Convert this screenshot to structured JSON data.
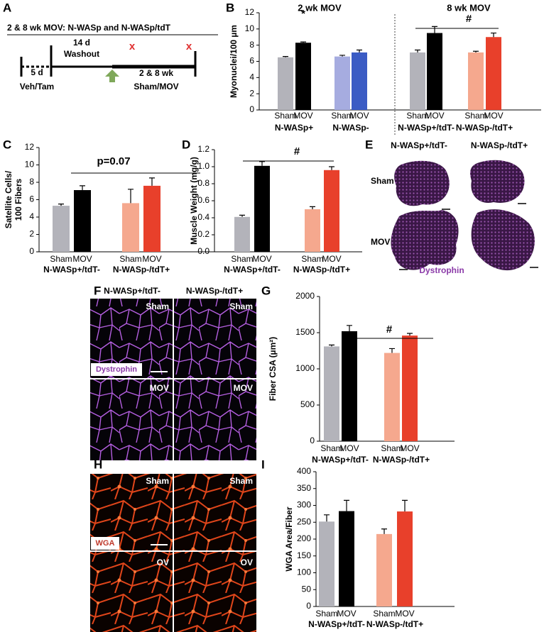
{
  "panel_letters": [
    "A",
    "B",
    "C",
    "D",
    "E",
    "F",
    "G",
    "H",
    "I"
  ],
  "timeline": {
    "title": "2 & 8 wk MOV: N-WASp and N-WASp/tdT",
    "labels": [
      "5 d",
      "Veh/Tam",
      "14 d",
      "Washout",
      "2 & 8 wk",
      "Sham/MOV"
    ],
    "markers": [
      "x",
      "x"
    ]
  },
  "chart_data": [
    {
      "type": "bar",
      "section_labels": [
        "2 wk MOV",
        "8 wk MOV"
      ],
      "ylabel": [
        "Myonuclei/100 µm"
      ],
      "categories": [
        "Sham",
        "MOV",
        "Sham",
        "MOV",
        "Sham",
        "MOV",
        "Sham",
        "MOV"
      ],
      "group_labels": [
        "N-WASp+",
        "N-WASp-",
        "N-WASp+/tdT-",
        "N-WASp-/tdT+"
      ],
      "values": [
        6.5,
        8.3,
        6.6,
        7.1,
        7.1,
        9.5,
        7.1,
        9.0
      ],
      "errors": [
        0.1,
        0.1,
        0.15,
        0.3,
        0.3,
        0.8,
        0.15,
        0.5
      ],
      "colors": [
        "#b3b3ba",
        "#000000",
        "#a6ace0",
        "#3b5cc4",
        "#b3b3ba",
        "#000000",
        "#f5a88e",
        "#e8402b"
      ],
      "ylim": [
        0,
        12
      ],
      "yticks": [
        0,
        2,
        4,
        6,
        8,
        10,
        12
      ],
      "annotations": [
        "*",
        "#"
      ]
    },
    {
      "type": "bar",
      "ylabel": [
        "Satellite Cells/",
        "100 Fibers"
      ],
      "categories": [
        "Sham",
        "MOV",
        "Sham",
        "MOV"
      ],
      "group_labels": [
        "N-WASp+/tdT-",
        "N-WASp-/tdT+"
      ],
      "values": [
        5.3,
        7.1,
        5.6,
        7.6
      ],
      "errors": [
        0.2,
        0.5,
        1.6,
        0.9
      ],
      "colors": [
        "#b3b3ba",
        "#000000",
        "#f5a88e",
        "#e8402b"
      ],
      "ylim": [
        0,
        12
      ],
      "yticks": [
        0,
        2,
        4,
        6,
        8,
        10,
        12
      ],
      "annotations": [
        "p=0.07"
      ]
    },
    {
      "type": "bar",
      "ylabel": [
        "Muscle Weight (mg/g)"
      ],
      "categories": [
        "Sham",
        "MOV",
        "Sham",
        "MOV"
      ],
      "group_labels": [
        "N-WASp+/tdT-",
        "N-WASp-/tdT+"
      ],
      "values": [
        0.41,
        1.01,
        0.5,
        0.96
      ],
      "errors": [
        0.02,
        0.05,
        0.03,
        0.04
      ],
      "colors": [
        "#b3b3ba",
        "#000000",
        "#f5a88e",
        "#e8402b"
      ],
      "ylim": [
        0,
        1.2
      ],
      "yticks": [
        {
          "value": 0,
          "label": "0.0"
        },
        0.2,
        0.4,
        0.6,
        0.8,
        {
          "value": 1,
          "label": "1.0"
        },
        1.2
      ],
      "annotations": [
        "#"
      ]
    },
    {
      "type": "bar",
      "ylabel": [
        "Fiber CSA (µm²)"
      ],
      "categories": [
        "Sham",
        "MOV",
        "Sham",
        "MOV"
      ],
      "group_labels": [
        "N-WASp+/tdT-",
        "N-WASp-/tdT+"
      ],
      "values": [
        1310,
        1520,
        1220,
        1460
      ],
      "errors": [
        20,
        80,
        60,
        30
      ],
      "colors": [
        "#b3b3ba",
        "#000000",
        "#f5a88e",
        "#e8402b"
      ],
      "ylim": [
        0,
        2000
      ],
      "yticks": [
        0,
        500,
        1000,
        1500,
        2000
      ],
      "annotations": [
        "#"
      ]
    },
    {
      "type": "bar",
      "ylabel": [
        "WGA Area/Fiber"
      ],
      "categories": [
        "Sham",
        "MOV",
        "Sham",
        "MOV"
      ],
      "group_labels": [
        "N-WASp+/tdT-",
        "N-WASp-/tdT+"
      ],
      "values": [
        252,
        283,
        215,
        282
      ],
      "errors": [
        20,
        32,
        15,
        33
      ],
      "colors": [
        "#b3b3ba",
        "#000000",
        "#f5a88e",
        "#e8402b"
      ],
      "ylim": [
        0,
        400
      ],
      "yticks": [
        0,
        50,
        100,
        150,
        200,
        250,
        300,
        350,
        400
      ],
      "annotations": []
    }
  ],
  "panel_e": {
    "columns": [
      "N-WASp+/tdT-",
      "N-WASp-/tdT+"
    ],
    "rows": [
      "Sham",
      "MOV"
    ],
    "stain": "Dystrophin"
  },
  "panel_f": {
    "columns": [
      "N-WASp+/tdT-",
      "N-WASp-/tdT+"
    ],
    "labels": [
      "Sham",
      "Sham",
      "MOV",
      "MOV"
    ],
    "stain": "Dystrophin"
  },
  "panel_h": {
    "labels": [
      "Sham",
      "Sham",
      "OV",
      "OV"
    ],
    "stain": "WGA"
  }
}
